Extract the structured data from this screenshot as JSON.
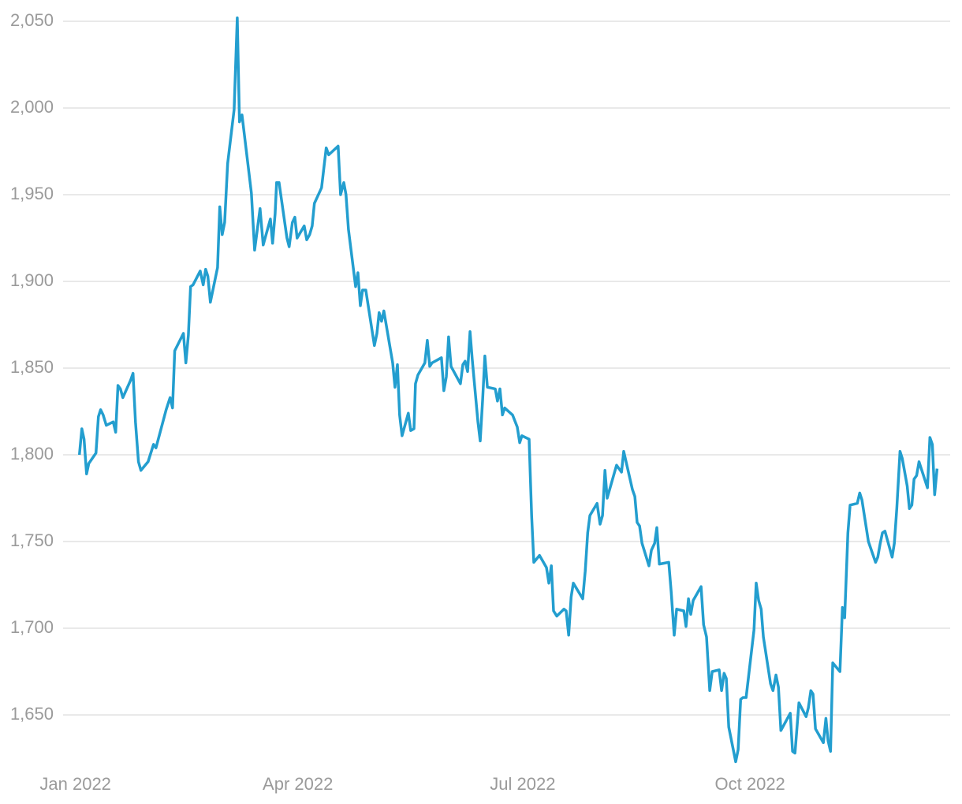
{
  "chart_data": {
    "type": "line",
    "color": "#239ecf",
    "grid": true,
    "xlim": [
      -5,
      354
    ],
    "xticks": [
      {
        "value": 0,
        "label": "Jan 2022"
      },
      {
        "value": 90,
        "label": "Apr 2022"
      },
      {
        "value": 181,
        "label": "Jul 2022"
      },
      {
        "value": 273,
        "label": "Oct 2022"
      }
    ],
    "ylim": [
      1620,
      2055
    ],
    "yticks": [
      {
        "value": 1650,
        "label": "1,650"
      },
      {
        "value": 1700,
        "label": "1,700"
      },
      {
        "value": 1750,
        "label": "1,750"
      },
      {
        "value": 1800,
        "label": "1,800"
      },
      {
        "value": 1850,
        "label": "1,850"
      },
      {
        "value": 1900,
        "label": "1,900"
      },
      {
        "value": 1950,
        "label": "1,950"
      },
      {
        "value": 2000,
        "label": "2,000"
      },
      {
        "value": 2050,
        "label": "2,050"
      }
    ],
    "x": [
      1.6,
      2.6,
      3.5,
      4.5,
      5.4,
      8.3,
      9.3,
      10.2,
      11.2,
      12.5,
      15.3,
      16.3,
      17.2,
      18.2,
      19.2,
      22.3,
      23.3,
      24.3,
      25.5,
      26.5,
      29.4,
      31.6,
      32.6,
      36.7,
      38.3,
      39.3,
      40.2,
      43.7,
      44.7,
      45.7,
      46.6,
      47.6,
      50.5,
      51.7,
      52.7,
      53.6,
      54.6,
      57.5,
      58.4,
      59.4,
      60.4,
      61.6,
      64.2,
      65.5,
      66.4,
      67.4,
      71.2,
      72.5,
      74.7,
      76.0,
      78.9,
      79.8,
      80.8,
      81.4,
      82.4,
      85.6,
      86.5,
      87.8,
      88.8,
      89.7,
      92.6,
      93.6,
      94.8,
      95.8,
      96.7,
      99.6,
      101.5,
      102.5,
      106.3,
      107.3,
      108.6,
      109.5,
      110.5,
      113.4,
      114.3,
      115.3,
      116.2,
      117.5,
      121.0,
      122.0,
      122.9,
      123.9,
      124.8,
      128.4,
      129.3,
      130.3,
      131.2,
      132.2,
      134.7,
      135.7,
      137.0,
      137.6,
      138.6,
      141.4,
      142.4,
      143.4,
      144.3,
      148.1,
      149.1,
      150.1,
      151.0,
      152.0,
      155.8,
      156.8,
      157.7,
      158.7,
      159.7,
      160.6,
      162.9,
      163.8,
      164.8,
      165.7,
      166.7,
      169.9,
      170.8,
      171.8,
      172.8,
      173.7,
      176.9,
      178.8,
      179.8,
      180.7,
      183.6,
      184.6,
      185.5,
      187.8,
      190.6,
      191.6,
      192.6,
      193.5,
      194.8,
      197.7,
      198.6,
      199.6,
      200.6,
      201.5,
      205.3,
      206.3,
      207.3,
      208.2,
      211.1,
      212.3,
      213.3,
      214.3,
      215.2,
      219.0,
      220.0,
      221.0,
      221.9,
      225.4,
      226.4,
      227.3,
      228.3,
      229.3,
      232.1,
      233.1,
      234.4,
      235.3,
      236.3,
      240.1,
      241.1,
      242.3,
      243.3,
      246.2,
      247.1,
      248.1,
      249.0,
      250.0,
      253.2,
      254.2,
      255.4,
      256.7,
      257.7,
      260.5,
      261.5,
      262.5,
      263.4,
      264.4,
      267.2,
      268.2,
      269.2,
      270.1,
      271.4,
      274.6,
      275.5,
      276.5,
      277.5,
      278.4,
      281.3,
      282.3,
      283.5,
      284.5,
      285.5,
      289.3,
      290.2,
      291.2,
      292.8,
      295.7,
      296.6,
      297.6,
      298.5,
      299.5,
      302.7,
      303.7,
      304.6,
      305.6,
      306.5,
      309.4,
      310.4,
      311.3,
      312.6,
      313.5,
      316.4,
      317.4,
      318.3,
      320.9,
      323.8,
      324.7,
      325.7,
      326.6,
      327.6,
      330.5,
      331.4,
      332.4,
      333.7,
      334.6,
      336.6,
      337.5,
      338.5,
      339.4,
      340.4,
      341.4,
      344.8,
      345.8,
      346.8,
      347.7,
      348.7
    ],
    "values": [
      1800,
      1815,
      1809,
      1789,
      1795,
      1801,
      1822,
      1826,
      1823,
      1817,
      1819,
      1813,
      1840,
      1838,
      1833,
      1843,
      1847,
      1819,
      1796,
      1791,
      1796,
      1806,
      1804,
      1826,
      1833,
      1827,
      1860,
      1870,
      1853,
      1869,
      1897,
      1898,
      1906,
      1898,
      1907,
      1903,
      1888,
      1908,
      1943,
      1927,
      1934,
      1968,
      1999,
      2052,
      1992,
      1996,
      1951,
      1918,
      1942,
      1921,
      1936,
      1922,
      1939,
      1957,
      1957,
      1925,
      1920,
      1934,
      1937,
      1925,
      1932,
      1924,
      1927,
      1932,
      1945,
      1954,
      1977,
      1973,
      1978,
      1950,
      1957,
      1950,
      1930,
      1897,
      1905,
      1886,
      1895,
      1895,
      1863,
      1870,
      1882,
      1877,
      1883,
      1853,
      1839,
      1852,
      1823,
      1811,
      1824,
      1814,
      1815,
      1841,
      1846,
      1853,
      1866,
      1851,
      1853,
      1856,
      1837,
      1845,
      1868,
      1851,
      1841,
      1852,
      1854,
      1848,
      1871,
      1855,
      1819,
      1808,
      1832,
      1857,
      1839,
      1838,
      1831,
      1838,
      1823,
      1827,
      1823,
      1816,
      1807,
      1811,
      1809,
      1765,
      1738,
      1742,
      1735,
      1726,
      1736,
      1710,
      1707,
      1711,
      1710,
      1696,
      1718,
      1726,
      1717,
      1733,
      1755,
      1765,
      1772,
      1760,
      1765,
      1791,
      1775,
      1794,
      1792,
      1790,
      1802,
      1780,
      1776,
      1761,
      1759,
      1749,
      1736,
      1745,
      1749,
      1758,
      1737,
      1738,
      1721,
      1696,
      1711,
      1710,
      1701,
      1717,
      1708,
      1716,
      1724,
      1702,
      1695,
      1664,
      1675,
      1676,
      1664,
      1674,
      1671,
      1643,
      1623,
      1630,
      1659,
      1660,
      1660,
      1699,
      1726,
      1716,
      1711,
      1695,
      1668,
      1664,
      1673,
      1666,
      1641,
      1651,
      1629,
      1628,
      1657,
      1649,
      1654,
      1664,
      1662,
      1642,
      1634,
      1648,
      1635,
      1629,
      1680,
      1675,
      1712,
      1706,
      1755,
      1771,
      1772,
      1778,
      1774,
      1750,
      1738,
      1741,
      1749,
      1755,
      1756,
      1741,
      1749,
      1769,
      1802,
      1798,
      1782,
      1769,
      1771,
      1786,
      1788,
      1796,
      1781,
      1810,
      1806,
      1777,
      1792
    ]
  }
}
